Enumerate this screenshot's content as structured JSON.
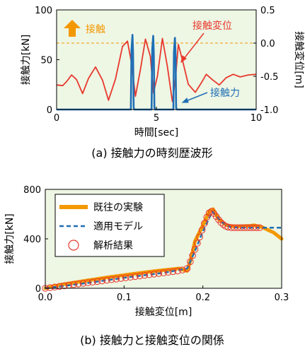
{
  "chart_data": [
    {
      "type": "line",
      "caption": "(a) 接触力の時刻歴波形",
      "xlabel": "時間[sec]",
      "ylabel_left": "接触力[kN]",
      "ylabel_right": "接触変位[m]",
      "xlim": [
        0,
        10
      ],
      "ylim_left": [
        0,
        100
      ],
      "ylim_right": [
        -1.0,
        0.5
      ],
      "x_ticks": [
        "0",
        "5",
        "10"
      ],
      "y_ticks_left": [
        "0",
        "50",
        "100"
      ],
      "y_ticks_right": [
        "-1.0",
        "-0.5",
        "0.0",
        "0.5"
      ],
      "threshold_displacement": 0.0,
      "annotations": [
        {
          "text": "接触",
          "marker": "up-arrow",
          "color": "#f39800"
        },
        {
          "text": "接触変位",
          "color": "#e8382d"
        },
        {
          "text": "接触力",
          "color": "#1f6fb5"
        }
      ],
      "series": [
        {
          "name": "接触変位",
          "axis": "right",
          "color": "#e8382d",
          "x": [
            0,
            0.3,
            0.5,
            0.75,
            1.0,
            1.3,
            1.6,
            1.95,
            2.3,
            2.6,
            2.95,
            3.3,
            3.55,
            3.75,
            3.95,
            4.2,
            4.45,
            4.7,
            4.85,
            5.05,
            5.3,
            5.55,
            5.8,
            5.95,
            6.1,
            6.3,
            6.6,
            6.95,
            7.25,
            7.5,
            7.8,
            8.15,
            8.5,
            8.85,
            9.2,
            9.6,
            10.0
          ],
          "y": [
            -0.63,
            -0.64,
            -0.58,
            -0.48,
            -0.55,
            -0.76,
            -0.53,
            -0.36,
            -0.56,
            -0.86,
            -0.54,
            -0.05,
            0.03,
            -0.3,
            -0.8,
            -0.4,
            0.06,
            -0.2,
            -0.75,
            -0.5,
            0.07,
            -0.35,
            -0.88,
            -0.55,
            -0.02,
            -0.25,
            -0.62,
            -0.74,
            -0.6,
            -0.47,
            -0.55,
            -0.63,
            -0.52,
            -0.47,
            -0.51,
            -0.48,
            -0.47
          ]
        },
        {
          "name": "接触力",
          "axis": "left",
          "color": "#1f6fb5",
          "x": [
            0,
            3.72,
            3.75,
            3.8,
            3.83,
            3.86,
            3.89,
            4.76,
            4.79,
            4.84,
            4.87,
            4.9,
            4.93,
            5.85,
            5.88,
            5.93,
            5.96,
            5.99,
            6.02,
            10.0
          ],
          "y": [
            0,
            0,
            60,
            75,
            58,
            2,
            0,
            0,
            60,
            74,
            57,
            2,
            0,
            0,
            58,
            72,
            55,
            2,
            0,
            0
          ]
        }
      ]
    },
    {
      "type": "line",
      "caption": "(b) 接触力と接触変位の関係",
      "xlabel": "接触変位[m]",
      "ylabel": "接触力[kN]",
      "xlim": [
        0,
        0.3
      ],
      "ylim": [
        0,
        800
      ],
      "x_ticks": [
        "0.0",
        "0.1",
        "0.2",
        "0.3"
      ],
      "y_ticks": [
        "0",
        "400",
        "800"
      ],
      "legend_position": "top-left",
      "series": [
        {
          "name": "既往の実験",
          "style": "solid-thick",
          "color": "#f39800",
          "x": [
            0.0,
            0.02,
            0.05,
            0.08,
            0.11,
            0.14,
            0.17,
            0.18,
            0.185,
            0.19,
            0.2,
            0.208,
            0.213,
            0.22,
            0.23,
            0.24,
            0.26,
            0.265,
            0.275,
            0.29,
            0.3
          ],
          "y": [
            0,
            30,
            60,
            90,
            115,
            140,
            160,
            140,
            240,
            380,
            510,
            620,
            640,
            560,
            510,
            500,
            505,
            510,
            495,
            450,
            400
          ]
        },
        {
          "name": "適用モデル",
          "style": "dashed",
          "color": "#1f6fb5",
          "x": [
            0.0,
            0.05,
            0.1,
            0.15,
            0.18,
            0.19,
            0.2,
            0.212,
            0.225,
            0.235,
            0.25,
            0.275,
            0.3
          ],
          "y": [
            0,
            40,
            85,
            125,
            160,
            300,
            460,
            620,
            530,
            495,
            490,
            490,
            490
          ]
        },
        {
          "name": "解析結果",
          "style": "markers-open-circle",
          "color": "#e8382d",
          "x": [
            0.0,
            0.006,
            0.012,
            0.018,
            0.024,
            0.03,
            0.036,
            0.042,
            0.048,
            0.054,
            0.06,
            0.066,
            0.072,
            0.078,
            0.084,
            0.09,
            0.096,
            0.102,
            0.108,
            0.114,
            0.12,
            0.126,
            0.132,
            0.138,
            0.144,
            0.15,
            0.156,
            0.162,
            0.168,
            0.174,
            0.18,
            0.184,
            0.187,
            0.19,
            0.193,
            0.196,
            0.199,
            0.202,
            0.205,
            0.208,
            0.211,
            0.214,
            0.217,
            0.22,
            0.223,
            0.226,
            0.229,
            0.232,
            0.236,
            0.24,
            0.244,
            0.248,
            0.252,
            0.256,
            0.26,
            0.264,
            0.268,
            0.272
          ],
          "y": [
            0,
            5,
            10,
            15,
            20,
            25,
            30,
            35,
            40,
            45,
            50,
            55,
            60,
            65,
            70,
            75,
            80,
            85,
            90,
            95,
            100,
            105,
            110,
            115,
            120,
            125,
            130,
            135,
            140,
            148,
            160,
            215,
            265,
            315,
            365,
            415,
            470,
            525,
            575,
            610,
            622,
            605,
            580,
            555,
            532,
            515,
            502,
            495,
            491,
            490,
            490,
            490,
            490,
            490,
            490,
            490,
            490,
            490
          ]
        }
      ]
    }
  ]
}
